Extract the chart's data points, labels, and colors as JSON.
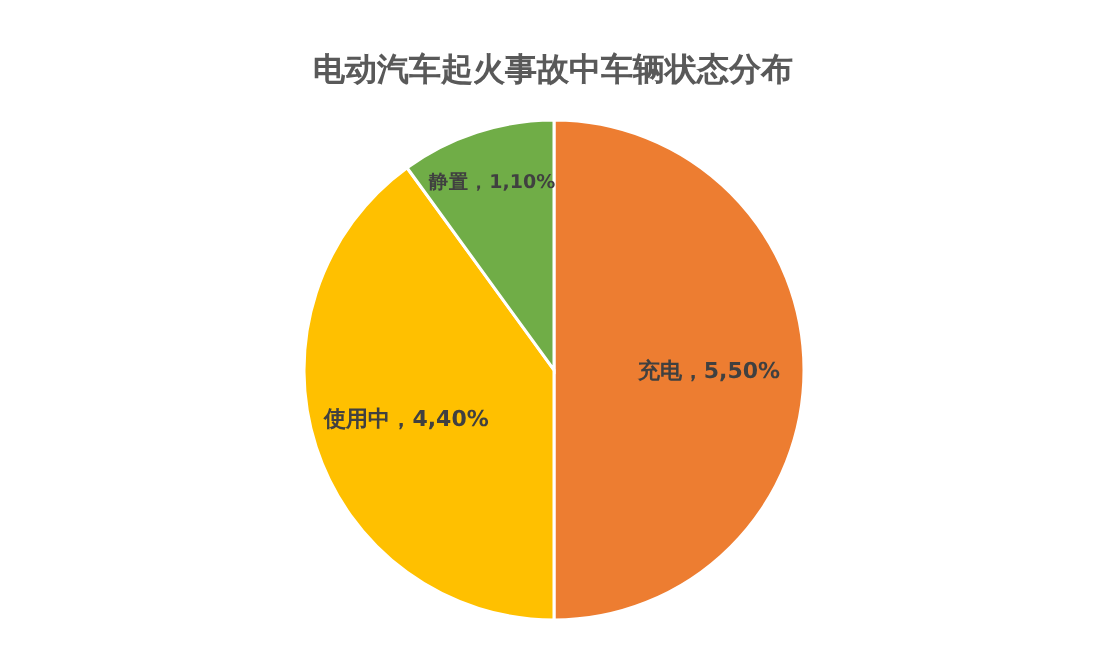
{
  "chart_data": {
    "type": "pie",
    "title": "电动汽车起火事故中车辆状态分布",
    "categories": [
      "充电",
      "使用中",
      "静置"
    ],
    "values": [
      5.5,
      4.4,
      1.1
    ],
    "value_labels": [
      "5,50%",
      "4,40%",
      "1,10%"
    ],
    "colors": [
      "#ed7d31",
      "#ffc000",
      "#70ad47"
    ]
  }
}
